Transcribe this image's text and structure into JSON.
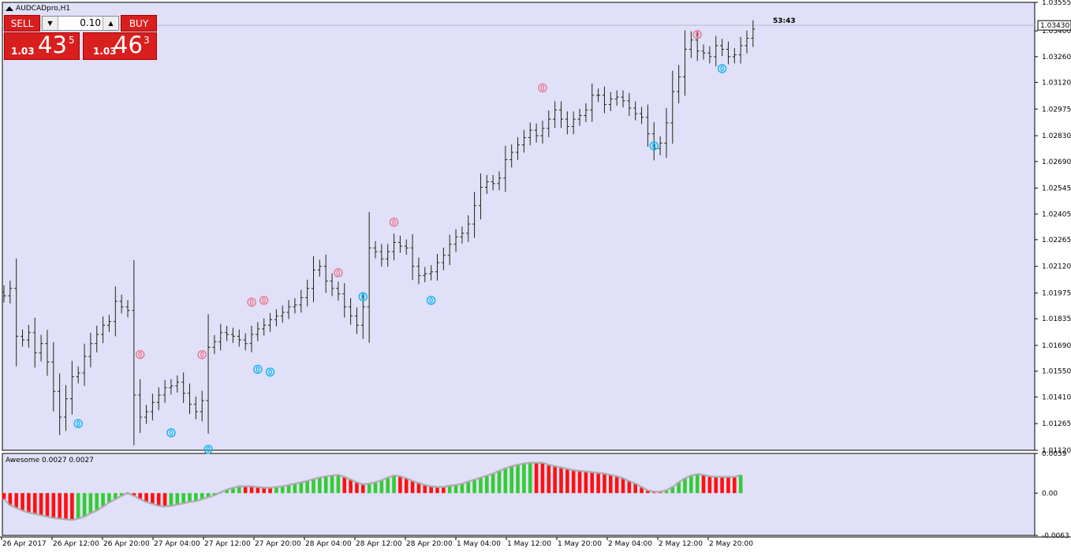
{
  "chart_title": "AUDCADpro,H1",
  "countdown": "53:43",
  "trade_panel": {
    "sell_label": "SELL",
    "buy_label": "BUY",
    "lot_size": "0.10",
    "sell_price_small": "1.03",
    "sell_price_big": "43",
    "sell_price_sup": "5",
    "buy_price_small": "1.03",
    "buy_price_big": "46",
    "buy_price_sup": "3"
  },
  "colors": {
    "background": "#e0e0f8",
    "candle": "#1a2a0a",
    "ao_up": "#33cc33",
    "ao_down": "#ff1010",
    "marker_up": "#19b5f0",
    "marker_down": "#e87a92",
    "countdown": "#33cc33",
    "ao_line": "#a8a8a8"
  },
  "chart_data": [
    {
      "type": "ohlc",
      "name": "AUDCADpro,H1",
      "ylim": [
        1.0112,
        1.03555
      ],
      "y_ticks": [
        "1.03555",
        "1.03400",
        "1.03260",
        "1.03120",
        "1.02975",
        "1.02830",
        "1.02690",
        "1.02545",
        "1.02405",
        "1.02265",
        "1.02120",
        "1.01975",
        "1.01835",
        "1.01690",
        "1.01550",
        "1.01410",
        "1.01265",
        "1.01120"
      ],
      "current_price": "1.03430",
      "x_ticks": [
        "26 Apr 2017",
        "26 Apr 12:00",
        "26 Apr 20:00",
        "27 Apr 04:00",
        "27 Apr 12:00",
        "27 Apr 20:00",
        "28 Apr 04:00",
        "28 Apr 12:00",
        "28 Apr 20:00",
        "1 May 04:00",
        "1 May 12:00",
        "1 May 20:00",
        "2 May 04:00",
        "2 May 12:00",
        "2 May 20:00"
      ],
      "close_path": [
        1.0196,
        1.02,
        1.0174,
        1.0172,
        1.0176,
        1.0165,
        1.017,
        1.016,
        1.0144,
        1.013,
        1.014,
        1.0152,
        1.0154,
        1.0163,
        1.017,
        1.0175,
        1.018,
        1.0182,
        1.0193,
        1.019,
        1.0188,
        1.0142,
        1.013,
        1.0133,
        1.0138,
        1.0142,
        1.0146,
        1.0147,
        1.0149,
        1.0143,
        1.0137,
        1.0133,
        1.0139,
        1.0168,
        1.0171,
        1.0176,
        1.0175,
        1.0174,
        1.0172,
        1.017,
        1.0175,
        1.0178,
        1.018,
        1.0183,
        1.0185,
        1.0187,
        1.019,
        1.0191,
        1.0195,
        1.02,
        1.021,
        1.0212,
        1.0204,
        1.02,
        1.0197,
        1.019,
        1.0185,
        1.018,
        1.019,
        1.0222,
        1.022,
        1.0216,
        1.022,
        1.0225,
        1.0223,
        1.0222,
        1.0212,
        1.0207,
        1.0208,
        1.0209,
        1.0214,
        1.0218,
        1.0224,
        1.0228,
        1.023,
        1.0235,
        1.0245,
        1.0255,
        1.0258,
        1.0257,
        1.026,
        1.027,
        1.0274,
        1.0278,
        1.0282,
        1.0286,
        1.0283,
        1.0287,
        1.0292,
        1.0297,
        1.0292,
        1.0288,
        1.0292,
        1.0294,
        1.0297,
        1.0305,
        1.0305,
        1.03,
        1.0303,
        1.0304,
        1.0302,
        1.0298,
        1.0295,
        1.0293,
        1.0284,
        1.0276,
        1.0279,
        1.029,
        1.0307,
        1.0315,
        1.033,
        1.0335,
        1.0329,
        1.0328,
        1.0326,
        1.0332,
        1.033,
        1.0326,
        1.0327,
        1.0332,
        1.0336,
        1.0341
      ],
      "fractal_markers": [
        {
          "bar": 12,
          "price": 1.01265,
          "side": "up"
        },
        {
          "bar": 22,
          "price": 1.0164,
          "side": "down"
        },
        {
          "bar": 27,
          "price": 1.01215,
          "side": "up"
        },
        {
          "bar": 32,
          "price": 1.0164,
          "side": "down"
        },
        {
          "bar": 33,
          "price": 1.01125,
          "side": "up"
        },
        {
          "bar": 41,
          "price": 1.0156,
          "side": "up"
        },
        {
          "bar": 40,
          "price": 1.01925,
          "side": "down"
        },
        {
          "bar": 42,
          "price": 1.01935,
          "side": "down"
        },
        {
          "bar": 43,
          "price": 1.01545,
          "side": "up"
        },
        {
          "bar": 54,
          "price": 1.02085,
          "side": "down"
        },
        {
          "bar": 58,
          "price": 1.01955,
          "side": "up"
        },
        {
          "bar": 63,
          "price": 1.0236,
          "side": "down"
        },
        {
          "bar": 69,
          "price": 1.01935,
          "side": "up"
        },
        {
          "bar": 87,
          "price": 1.0309,
          "side": "down"
        },
        {
          "bar": 105,
          "price": 1.02775,
          "side": "up"
        },
        {
          "bar": 112,
          "price": 1.0338,
          "side": "down"
        },
        {
          "bar": 116,
          "price": 1.03195,
          "side": "up"
        }
      ]
    },
    {
      "type": "bar",
      "name": "Awesome",
      "header_text": "Awesome 0.0027 0.0027",
      "ylim": [
        -0.0063,
        0.0059
      ],
      "y_ticks": [
        "0.0059",
        "0.00",
        "-0.0063"
      ],
      "ao_path": [
        -0.0009,
        -0.0018,
        -0.0022,
        -0.0026,
        -0.0029,
        -0.0031,
        -0.0033,
        -0.0035,
        -0.0037,
        -0.0038,
        -0.0039,
        -0.004,
        -0.0038,
        -0.0035,
        -0.003,
        -0.0026,
        -0.002,
        -0.0014,
        -0.0009,
        -0.0004,
        0.0,
        -0.0004,
        -0.0009,
        -0.0013,
        -0.0016,
        -0.0019,
        -0.002,
        -0.0019,
        -0.0017,
        -0.0015,
        -0.0013,
        -0.0012,
        -0.0009,
        -0.0006,
        -0.0003,
        0.0001,
        0.0005,
        0.0008,
        0.001,
        0.001,
        0.001,
        0.0009,
        0.0008,
        0.0008,
        0.0009,
        0.001,
        0.0012,
        0.0014,
        0.0016,
        0.0018,
        0.0021,
        0.0023,
        0.0025,
        0.0026,
        0.0027,
        0.0024,
        0.002,
        0.0016,
        0.0013,
        0.0014,
        0.0016,
        0.0019,
        0.0023,
        0.0026,
        0.0025,
        0.0022,
        0.0018,
        0.0015,
        0.0012,
        0.001,
        0.0009,
        0.0009,
        0.0011,
        0.0012,
        0.0014,
        0.0017,
        0.002,
        0.0023,
        0.0026,
        0.0029,
        0.0033,
        0.0037,
        0.004,
        0.0042,
        0.0044,
        0.0045,
        0.0045,
        0.0045,
        0.0042,
        0.004,
        0.0038,
        0.0036,
        0.0034,
        0.0033,
        0.0032,
        0.0031,
        0.003,
        0.0029,
        0.0027,
        0.0025,
        0.0022,
        0.0018,
        0.0014,
        0.0009,
        0.0004,
        0.0002,
        0.0002,
        0.0004,
        0.0009,
        0.0016,
        0.0022,
        0.0026,
        0.0028,
        0.0027,
        0.0025,
        0.0024,
        0.0024,
        0.0024,
        0.0024,
        0.0027
      ]
    }
  ]
}
